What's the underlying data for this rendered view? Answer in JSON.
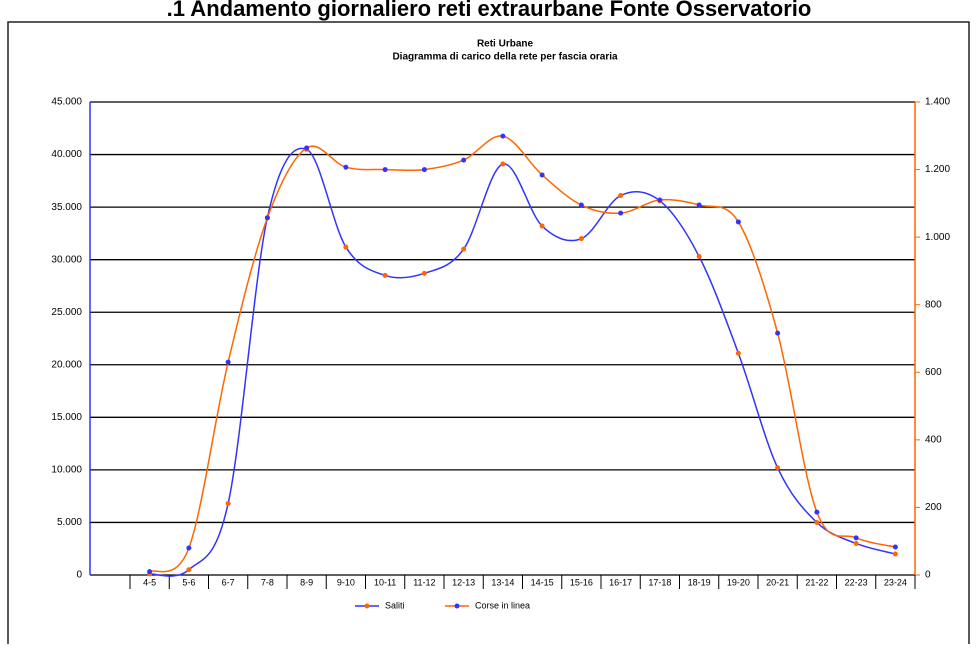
{
  "page_heading": ".1  Andamento giornaliero reti extraurbane  Fonte Osservatorio",
  "chart_data": {
    "type": "line",
    "title": "Reti Urbane",
    "subtitle": "Diagramma di carico della rete per fascia oraria",
    "categories": [
      "4-5",
      "5-6",
      "6-7",
      "7-8",
      "8-9",
      "9-10",
      "10-11",
      "11-12",
      "12-13",
      "13-14",
      "14-15",
      "15-16",
      "16-17",
      "17-18",
      "18-19",
      "19-20",
      "20-21",
      "21-22",
      "22-23",
      "23-24"
    ],
    "series": [
      {
        "name": "Saliti",
        "color": "#3333ff",
        "marker_color": "#ff6600",
        "values": [
          100,
          500,
          6800,
          34000,
          40500,
          31200,
          28500,
          28700,
          31000,
          39100,
          33200,
          32000,
          36100,
          35600,
          30300,
          21100,
          10200,
          5000,
          3000,
          2000
        ]
      },
      {
        "name": "Corse in linea",
        "color": "#ff6600",
        "marker_color": "#3333ff",
        "axis": "y2",
        "values": [
          10,
          80,
          630,
          1057,
          1264,
          1207,
          1200,
          1200,
          1228,
          1299,
          1184,
          1095,
          1071,
          1110,
          1095,
          1045,
          716,
          186,
          110,
          83
        ]
      }
    ],
    "ylim": [
      0,
      45000
    ],
    "yticks": [
      0,
      {
        "value": 5000,
        "label": "5.000"
      },
      {
        "value": 10000,
        "label": "10.000"
      },
      {
        "value": 15000,
        "label": "15.000"
      },
      {
        "value": 20000,
        "label": "20.000"
      },
      {
        "value": 25000,
        "label": "25.000"
      },
      {
        "value": 30000,
        "label": "30.000"
      },
      {
        "value": 35000,
        "label": "35.000"
      },
      {
        "value": 40000,
        "label": "40.000"
      },
      {
        "value": 45000,
        "label": "45.000"
      }
    ],
    "y2lim": [
      0,
      1400
    ],
    "y2ticks": [
      0,
      200,
      400,
      600,
      800,
      {
        "value": 1000,
        "label": "1.000"
      },
      {
        "value": 1200,
        "label": "1.200"
      },
      {
        "value": 1400,
        "label": "1.400"
      }
    ],
    "grid": true,
    "legend": "bottom"
  }
}
